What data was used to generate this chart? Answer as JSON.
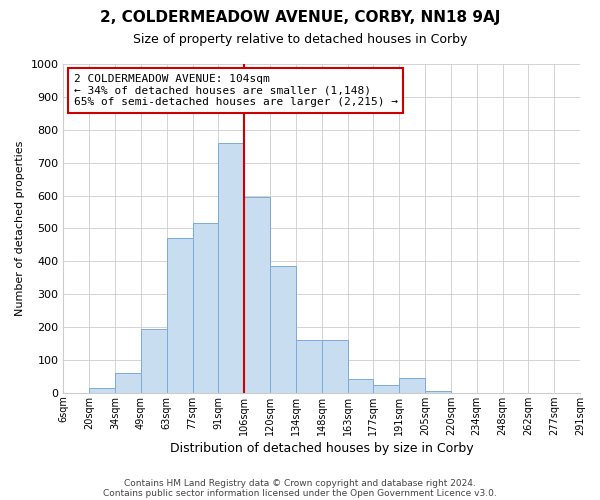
{
  "title": "2, COLDERMEADOW AVENUE, CORBY, NN18 9AJ",
  "subtitle": "Size of property relative to detached houses in Corby",
  "xlabel": "Distribution of detached houses by size in Corby",
  "ylabel": "Number of detached properties",
  "bin_labels": [
    "6sqm",
    "20sqm",
    "34sqm",
    "49sqm",
    "63sqm",
    "77sqm",
    "91sqm",
    "106sqm",
    "120sqm",
    "134sqm",
    "148sqm",
    "163sqm",
    "177sqm",
    "191sqm",
    "205sqm",
    "220sqm",
    "234sqm",
    "248sqm",
    "262sqm",
    "277sqm",
    "291sqm"
  ],
  "bar_heights": [
    0,
    15,
    60,
    195,
    470,
    515,
    760,
    595,
    385,
    160,
    160,
    42,
    25,
    45,
    5,
    0,
    0,
    0,
    0,
    0
  ],
  "bar_color": "#c9ddf0",
  "bar_edge_color": "#7aaadd",
  "vline_x_index": 7,
  "vline_color": "#cc0000",
  "annotation_text": "2 COLDERMEADOW AVENUE: 104sqm\n← 34% of detached houses are smaller (1,148)\n65% of semi-detached houses are larger (2,215) →",
  "annotation_box_color": "#ffffff",
  "annotation_box_edge": "#cc0000",
  "ylim": [
    0,
    1000
  ],
  "yticks": [
    0,
    100,
    200,
    300,
    400,
    500,
    600,
    700,
    800,
    900,
    1000
  ],
  "footer1": "Contains HM Land Registry data © Crown copyright and database right 2024.",
  "footer2": "Contains public sector information licensed under the Open Government Licence v3.0.",
  "background_color": "#ffffff",
  "grid_color": "#cccccc",
  "title_fontsize": 11,
  "subtitle_fontsize": 9
}
